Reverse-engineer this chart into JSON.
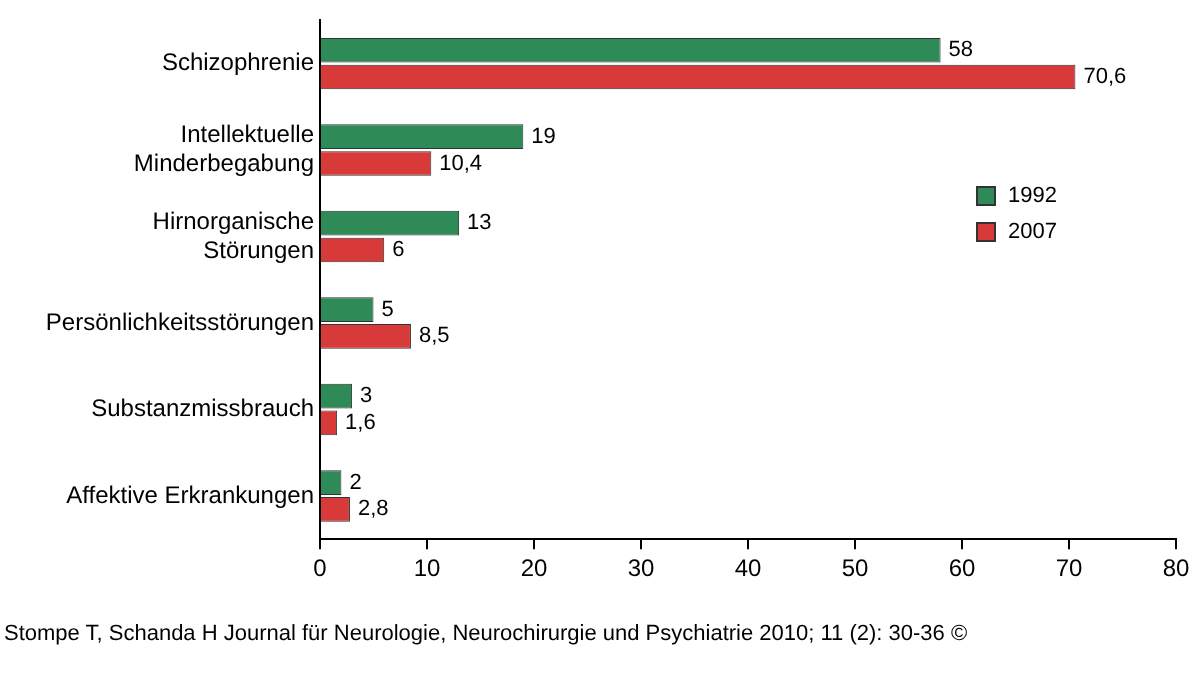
{
  "chart_data": {
    "type": "bar",
    "orientation": "horizontal",
    "categories": [
      "Schizophrenie",
      "Intellektuelle\nMinderbegabung",
      "Hirnorganische\nStörungen",
      "Persönlichkeitsstörungen",
      "Substanzmissbrauch",
      "Affektive Erkrankungen"
    ],
    "series": [
      {
        "name": "1992",
        "color": "#2e8b57",
        "values": [
          58,
          19,
          13,
          5,
          3,
          2
        ],
        "value_labels": [
          "58",
          "19",
          "13",
          "5",
          "3",
          "2"
        ]
      },
      {
        "name": "2007",
        "color": "#d83a3a",
        "values": [
          70.6,
          10.4,
          6,
          8.5,
          1.6,
          2.8
        ],
        "value_labels": [
          "70,6",
          "10,4",
          "6",
          "8,5",
          "1,6",
          "2,8"
        ]
      }
    ],
    "xlim": [
      0,
      80
    ],
    "xticks": [
      0,
      10,
      20,
      30,
      40,
      50,
      60,
      70,
      80
    ],
    "grid": false,
    "legend": "right",
    "annotations": [
      "Stompe T, Schanda H Journal für Neurologie, Neurochirurgie und Psychiatrie 2010; 11 (2): 30-36 ©"
    ]
  }
}
